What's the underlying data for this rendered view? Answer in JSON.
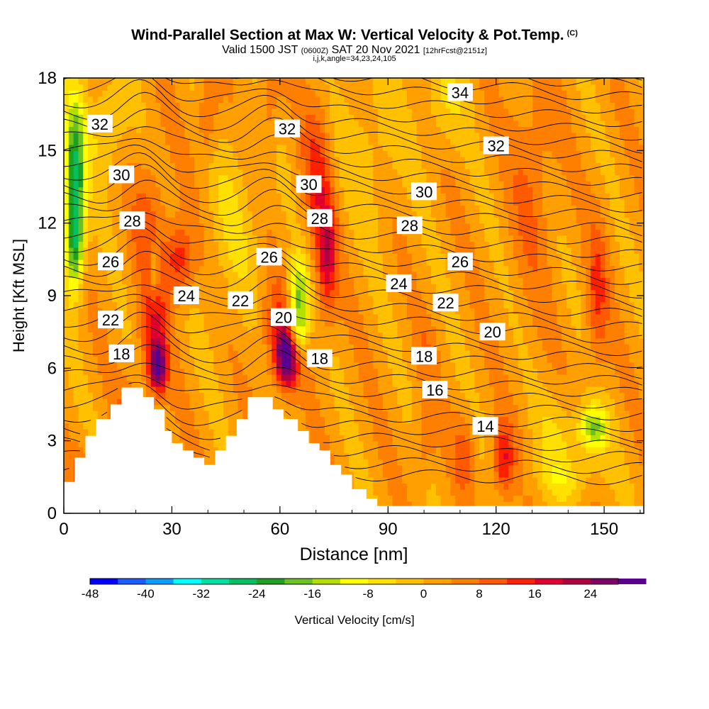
{
  "title": {
    "line1": "Wind-Parallel Section at Max W: Vertical Velocity & Pot.Temp.",
    "line1_tag": "(C)",
    "line2_main": "Valid 1500 JST",
    "line2_z": "(0600Z)",
    "line2_date": "SAT 20 Nov 2021",
    "line2_fcst": "[12hrFcst@2151z]",
    "line3": "i,j,k,angle=34,23,24,105"
  },
  "chart_data": {
    "type": "heatmap",
    "xlabel": "Distance [nm]",
    "ylabel": "Height [Kft MSL]",
    "xlim": [
      0,
      161
    ],
    "ylim": [
      0,
      18
    ],
    "xticks": [
      0,
      30,
      60,
      90,
      120,
      150
    ],
    "yticks": [
      0,
      3,
      6,
      9,
      12,
      15,
      18
    ],
    "colorbar": {
      "label": "Vertical Velocity [cm/s]",
      "range": [
        -48,
        28
      ],
      "step": 4,
      "tick_labels": [
        -48,
        -40,
        -32,
        -24,
        -16,
        -8,
        0,
        8,
        16,
        24
      ],
      "colors": [
        "#0000ff",
        "#1a5cff",
        "#0a9cff",
        "#00ffff",
        "#00e0a0",
        "#00c060",
        "#20a020",
        "#6cc020",
        "#b4e000",
        "#ffff00",
        "#ffe000",
        "#ffc000",
        "#ffa000",
        "#ff8000",
        "#ff5a00",
        "#ff2000",
        "#e00030",
        "#b00040",
        "#80006a",
        "#5a0090"
      ]
    },
    "theta_contour_labels": [
      {
        "value": "34",
        "x": 110,
        "y": 17.4
      },
      {
        "value": "32",
        "x": 10,
        "y": 16.1
      },
      {
        "value": "32",
        "x": 62,
        "y": 15.9
      },
      {
        "value": "32",
        "x": 120,
        "y": 15.2
      },
      {
        "value": "30",
        "x": 16,
        "y": 14.0
      },
      {
        "value": "30",
        "x": 68,
        "y": 13.6
      },
      {
        "value": "30",
        "x": 100,
        "y": 13.3
      },
      {
        "value": "28",
        "x": 19,
        "y": 12.1
      },
      {
        "value": "28",
        "x": 71,
        "y": 12.2
      },
      {
        "value": "28",
        "x": 96,
        "y": 11.9
      },
      {
        "value": "26",
        "x": 13,
        "y": 10.4
      },
      {
        "value": "26",
        "x": 57,
        "y": 10.6
      },
      {
        "value": "26",
        "x": 110,
        "y": 10.4
      },
      {
        "value": "24",
        "x": 34,
        "y": 9.0
      },
      {
        "value": "24",
        "x": 93,
        "y": 9.5
      },
      {
        "value": "22",
        "x": 13,
        "y": 8.0
      },
      {
        "value": "22",
        "x": 49,
        "y": 8.8
      },
      {
        "value": "22",
        "x": 106,
        "y": 8.7
      },
      {
        "value": "20",
        "x": 61,
        "y": 8.1
      },
      {
        "value": "20",
        "x": 119,
        "y": 7.5
      },
      {
        "value": "18",
        "x": 16,
        "y": 6.6
      },
      {
        "value": "18",
        "x": 71,
        "y": 6.4
      },
      {
        "value": "18",
        "x": 100,
        "y": 6.5
      },
      {
        "value": "16",
        "x": 103,
        "y": 5.1
      },
      {
        "value": "14",
        "x": 117,
        "y": 3.6
      }
    ],
    "terrain": [
      [
        0,
        1.3
      ],
      [
        3,
        1.3
      ],
      [
        3,
        2.3
      ],
      [
        6,
        2.3
      ],
      [
        6,
        3.2
      ],
      [
        9,
        3.2
      ],
      [
        9,
        3.9
      ],
      [
        13,
        3.9
      ],
      [
        13,
        4.5
      ],
      [
        16,
        4.5
      ],
      [
        16,
        5.2
      ],
      [
        22,
        5.2
      ],
      [
        22,
        4.8
      ],
      [
        25,
        4.8
      ],
      [
        25,
        4.3
      ],
      [
        28,
        4.3
      ],
      [
        28,
        3.4
      ],
      [
        30,
        3.4
      ],
      [
        30,
        2.9
      ],
      [
        33,
        2.9
      ],
      [
        33,
        2.6
      ],
      [
        36,
        2.6
      ],
      [
        36,
        2.3
      ],
      [
        39,
        2.3
      ],
      [
        39,
        2.0
      ],
      [
        42,
        2.0
      ],
      [
        42,
        2.6
      ],
      [
        45,
        2.6
      ],
      [
        45,
        3.2
      ],
      [
        48,
        3.2
      ],
      [
        48,
        3.9
      ],
      [
        51,
        3.9
      ],
      [
        51,
        4.8
      ],
      [
        58,
        4.8
      ],
      [
        58,
        4.3
      ],
      [
        61,
        4.3
      ],
      [
        61,
        3.9
      ],
      [
        65,
        3.9
      ],
      [
        65,
        3.4
      ],
      [
        68,
        3.4
      ],
      [
        68,
        2.9
      ],
      [
        71,
        2.9
      ],
      [
        71,
        2.6
      ],
      [
        74,
        2.6
      ],
      [
        74,
        2.0
      ],
      [
        77,
        2.0
      ],
      [
        77,
        1.6
      ],
      [
        80,
        1.6
      ],
      [
        80,
        1.0
      ],
      [
        84,
        1.0
      ],
      [
        84,
        0.6
      ],
      [
        87,
        0.6
      ],
      [
        87,
        0.3
      ],
      [
        161,
        0.3
      ],
      [
        161,
        0
      ]
    ]
  }
}
